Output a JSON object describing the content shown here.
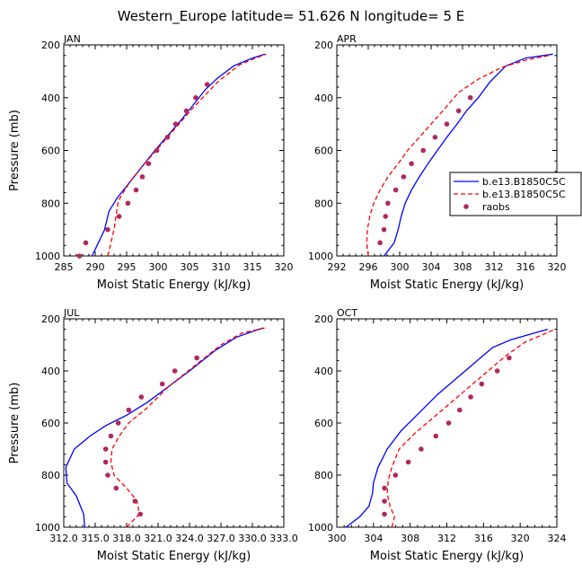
{
  "title": "Western_Europe  latitude= 51.626 N longitude= 5 E",
  "chart_data": [
    {
      "type": "line",
      "month": "JAN",
      "xlabel": "Moist Static Energy (kJ/kg)",
      "ylabel": "Pressure (mb)",
      "xlim": [
        285,
        320
      ],
      "ylim": [
        1000,
        200
      ],
      "x_ticks": [
        285,
        290,
        295,
        300,
        305,
        310,
        315,
        320
      ],
      "x_tick_labels": [
        "285",
        "290",
        "295",
        "300",
        "305",
        "310",
        "315",
        "320"
      ],
      "y_ticks": [
        200,
        400,
        600,
        800,
        1000
      ],
      "y_tick_labels": [
        "200",
        "400",
        "600",
        "800",
        "1000"
      ],
      "series": [
        {
          "name": "b.e13.B1850C5C",
          "style": "solid",
          "color": "#0000ff",
          "points": [
            [
              289.5,
              1000
            ],
            [
              290.5,
              950
            ],
            [
              291.5,
              900
            ],
            [
              292,
              850
            ],
            [
              292.2,
              830
            ],
            [
              293.5,
              780
            ],
            [
              295.5,
              720
            ],
            [
              297.5,
              660
            ],
            [
              299.5,
              600
            ],
            [
              301.5,
              545
            ],
            [
              303.5,
              490
            ],
            [
              305.5,
              430
            ],
            [
              307.5,
              370
            ],
            [
              309.5,
              325
            ],
            [
              312,
              280
            ],
            [
              315,
              250
            ],
            [
              317,
              235
            ]
          ]
        },
        {
          "name": "b.e13.B1850C5C",
          "style": "dashed",
          "color": "#ff0000",
          "points": [
            [
              292,
              1000
            ],
            [
              292.5,
              950
            ],
            [
              293,
              900
            ],
            [
              293.3,
              850
            ],
            [
              293.7,
              790
            ],
            [
              295.5,
              720
            ],
            [
              297.5,
              660
            ],
            [
              299.5,
              605
            ],
            [
              301.5,
              550
            ],
            [
              303.5,
              495
            ],
            [
              305.5,
              440
            ],
            [
              307.5,
              390
            ],
            [
              309.5,
              340
            ],
            [
              313,
              275
            ],
            [
              315.5,
              250
            ],
            [
              317.2,
              235
            ]
          ]
        },
        {
          "name": "raobs",
          "style": "marker",
          "color": "#b0285f",
          "points": [
            [
              287.5,
              1000
            ],
            [
              288.5,
              950
            ],
            [
              292,
              900
            ],
            [
              293.8,
              850
            ],
            [
              295.2,
              800
            ],
            [
              296.5,
              750
            ],
            [
              297.5,
              700
            ],
            [
              298.5,
              650
            ],
            [
              299.8,
              600
            ],
            [
              301.5,
              550
            ],
            [
              302.8,
              500
            ],
            [
              304.5,
              450
            ],
            [
              306,
              400
            ],
            [
              307.8,
              350
            ]
          ]
        }
      ]
    },
    {
      "type": "line",
      "month": "APR",
      "xlabel": "Moist Static Energy (kJ/kg)",
      "ylabel": "",
      "xlim": [
        292,
        320
      ],
      "ylim": [
        1000,
        200
      ],
      "x_ticks": [
        292,
        296,
        300,
        304,
        308,
        312,
        316,
        320
      ],
      "x_tick_labels": [
        "292",
        "296",
        "300",
        "304",
        "308",
        "312",
        "316",
        "320"
      ],
      "y_ticks": [
        200,
        400,
        600,
        800,
        1000
      ],
      "y_tick_labels": [
        "200",
        "400",
        "600",
        "800",
        "1000"
      ],
      "series": [
        {
          "name": "b.e13.B1850C5C",
          "style": "solid",
          "color": "#0000ff",
          "points": [
            [
              298,
              1000
            ],
            [
              299.3,
              950
            ],
            [
              299.8,
              900
            ],
            [
              300.2,
              850
            ],
            [
              300.7,
              800
            ],
            [
              301.5,
              750
            ],
            [
              302.5,
              700
            ],
            [
              303.6,
              650
            ],
            [
              304.8,
              600
            ],
            [
              306,
              550
            ],
            [
              307.3,
              500
            ],
            [
              308.5,
              450
            ],
            [
              310,
              400
            ],
            [
              311.5,
              340
            ],
            [
              313.5,
              280
            ],
            [
              316,
              250
            ],
            [
              319.5,
              235
            ]
          ]
        },
        {
          "name": "b.e13.B1850C5C",
          "style": "dashed",
          "color": "#ff0000",
          "points": [
            [
              296,
              1000
            ],
            [
              295.8,
              950
            ],
            [
              295.9,
              900
            ],
            [
              296.2,
              850
            ],
            [
              296.7,
              800
            ],
            [
              297.5,
              750
            ],
            [
              298.5,
              700
            ],
            [
              299.8,
              650
            ],
            [
              301,
              600
            ],
            [
              302.5,
              550
            ],
            [
              304,
              500
            ],
            [
              305.5,
              450
            ],
            [
              307.5,
              380
            ],
            [
              310,
              330
            ],
            [
              313,
              285
            ],
            [
              316,
              258
            ],
            [
              319,
              240
            ]
          ]
        },
        {
          "name": "raobs",
          "style": "marker",
          "color": "#b0285f",
          "points": [
            [
              297.5,
              950
            ],
            [
              298,
              900
            ],
            [
              298.2,
              850
            ],
            [
              298.5,
              800
            ],
            [
              299.5,
              750
            ],
            [
              300.5,
              700
            ],
            [
              301.5,
              650
            ],
            [
              303,
              600
            ],
            [
              304.5,
              550
            ],
            [
              306,
              500
            ],
            [
              307.5,
              450
            ],
            [
              309,
              400
            ]
          ]
        }
      ]
    },
    {
      "type": "line",
      "month": "JUL",
      "xlabel": "Moist Static Energy (kJ/kg)",
      "ylabel": "Pressure (mb)",
      "xlim": [
        312.0,
        333.0
      ],
      "ylim": [
        1000,
        200
      ],
      "x_ticks": [
        312.0,
        315.0,
        318.0,
        321.0,
        324.0,
        327.0,
        330.0,
        333.0
      ],
      "x_tick_labels": [
        "312.0",
        "315.0",
        "318.0",
        "321.0",
        "324.0",
        "327.0",
        "330.0",
        "333.0"
      ],
      "y_ticks": [
        200,
        400,
        600,
        800,
        1000
      ],
      "y_tick_labels": [
        "200",
        "400",
        "600",
        "800",
        "1000"
      ],
      "series": [
        {
          "name": "b.e13.B1850C5C",
          "style": "solid",
          "color": "#0000ff",
          "points": [
            [
              314,
              1000
            ],
            [
              313.9,
              950
            ],
            [
              313.2,
              880
            ],
            [
              312.3,
              830
            ],
            [
              312.2,
              770
            ],
            [
              313,
              700
            ],
            [
              314.5,
              650
            ],
            [
              316,
              610
            ],
            [
              318,
              570
            ],
            [
              320,
              520
            ],
            [
              322,
              460
            ],
            [
              324,
              400
            ],
            [
              326.5,
              320
            ],
            [
              328.5,
              270
            ],
            [
              331,
              235
            ]
          ]
        },
        {
          "name": "b.e13.B1850C5C",
          "style": "dashed",
          "color": "#ff0000",
          "points": [
            [
              318,
              1000
            ],
            [
              319.2,
              950
            ],
            [
              319,
              900
            ],
            [
              318,
              850
            ],
            [
              316.8,
              800
            ],
            [
              316.5,
              750
            ],
            [
              316.6,
              700
            ],
            [
              317.3,
              650
            ],
            [
              318.2,
              600
            ],
            [
              320,
              540
            ],
            [
              322,
              460
            ],
            [
              324.5,
              380
            ],
            [
              327,
              300
            ],
            [
              329,
              255
            ],
            [
              331.2,
              235
            ]
          ]
        },
        {
          "name": "raobs",
          "style": "marker",
          "color": "#b0285f",
          "points": [
            [
              319.3,
              950
            ],
            [
              318.8,
              900
            ],
            [
              317,
              850
            ],
            [
              316.2,
              800
            ],
            [
              316,
              750
            ],
            [
              316,
              700
            ],
            [
              316.5,
              650
            ],
            [
              317.2,
              600
            ],
            [
              318.2,
              550
            ],
            [
              319.4,
              500
            ],
            [
              321.4,
              450
            ],
            [
              322.6,
              400
            ],
            [
              324.7,
              350
            ]
          ]
        }
      ]
    },
    {
      "type": "line",
      "month": "OCT",
      "xlabel": "Moist Static Energy (kJ/kg)",
      "ylabel": "",
      "xlim": [
        300,
        324
      ],
      "ylim": [
        1000,
        200
      ],
      "x_ticks": [
        300,
        304,
        308,
        312,
        316,
        320,
        324
      ],
      "x_tick_labels": [
        "300",
        "304",
        "308",
        "312",
        "316",
        "320",
        "324"
      ],
      "y_ticks": [
        200,
        400,
        600,
        800,
        1000
      ],
      "y_tick_labels": [
        "200",
        "400",
        "600",
        "800",
        "1000"
      ],
      "series": [
        {
          "name": "b.e13.B1850C5C",
          "style": "solid",
          "color": "#0000ff",
          "points": [
            [
              301,
              1000
            ],
            [
              302.5,
              960
            ],
            [
              303.5,
              920
            ],
            [
              303.9,
              870
            ],
            [
              304,
              830
            ],
            [
              304.5,
              770
            ],
            [
              305.5,
              700
            ],
            [
              307,
              630
            ],
            [
              309,
              560
            ],
            [
              311,
              490
            ],
            [
              313,
              430
            ],
            [
              315,
              370
            ],
            [
              317,
              310
            ],
            [
              319,
              280
            ],
            [
              321,
              260
            ],
            [
              323,
              240
            ]
          ]
        },
        {
          "name": "b.e13.B1850C5C",
          "style": "dashed",
          "color": "#ff0000",
          "points": [
            [
              306,
              1000
            ],
            [
              306.3,
              960
            ],
            [
              305.8,
              920
            ],
            [
              305.5,
              870
            ],
            [
              305.6,
              820
            ],
            [
              306,
              770
            ],
            [
              306.8,
              700
            ],
            [
              308.5,
              640
            ],
            [
              310.5,
              580
            ],
            [
              312.5,
              520
            ],
            [
              314.5,
              460
            ],
            [
              316.5,
              400
            ],
            [
              318.5,
              340
            ],
            [
              320.5,
              290
            ],
            [
              322.5,
              260
            ],
            [
              323.8,
              240
            ]
          ]
        },
        {
          "name": "raobs",
          "style": "marker",
          "color": "#b0285f",
          "points": [
            [
              305.2,
              950
            ],
            [
              305.2,
              900
            ],
            [
              305.2,
              850
            ],
            [
              306.4,
              800
            ],
            [
              307.8,
              750
            ],
            [
              309.2,
              700
            ],
            [
              310.8,
              650
            ],
            [
              312.2,
              600
            ],
            [
              313.4,
              550
            ],
            [
              314.6,
              500
            ],
            [
              315.8,
              450
            ],
            [
              317.5,
              400
            ],
            [
              318.8,
              350
            ]
          ]
        }
      ]
    }
  ],
  "legend": {
    "entries": [
      {
        "label": "b.e13.B1850C5C",
        "style": "solid",
        "color": "#0000ff"
      },
      {
        "label": "b.e13.B1850C5C",
        "style": "dashed",
        "color": "#ff0000"
      },
      {
        "label": "raobs",
        "style": "marker",
        "color": "#b0285f"
      }
    ]
  }
}
